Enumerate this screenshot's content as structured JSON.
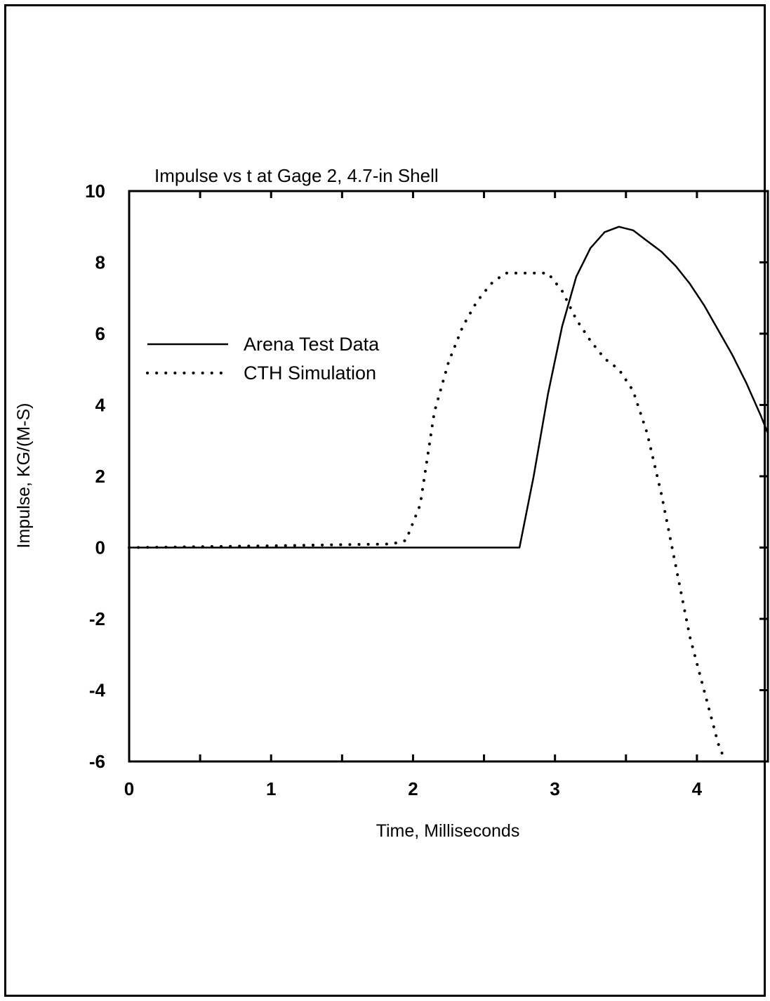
{
  "chart_data": {
    "type": "line",
    "title": "Impulse vs t at Gage 2, 4.7-in Shell",
    "xlabel": "Time, Milliseconds",
    "ylabel": "Impulse, KG/(M-S)",
    "xlim": [
      0,
      4.5
    ],
    "ylim": [
      -6,
      10
    ],
    "x_ticks": [
      0,
      1,
      2,
      3,
      4
    ],
    "x_tick_labels": [
      "0",
      "1",
      "2",
      "3",
      "4"
    ],
    "y_ticks": [
      -6,
      -4,
      -2,
      0,
      2,
      4,
      6,
      8,
      10
    ],
    "y_tick_labels": [
      "-6",
      "-4",
      "-2",
      "0",
      "2",
      "4",
      "6",
      "8",
      "10"
    ],
    "grid": false,
    "legend_position": "left",
    "series": [
      {
        "name": "Arena Test Data",
        "style": "solid",
        "x": [
          0,
          2.75,
          2.85,
          2.95,
          3.05,
          3.15,
          3.25,
          3.35,
          3.45,
          3.55,
          3.65,
          3.75,
          3.85,
          3.95,
          4.05,
          4.15,
          4.25,
          4.35,
          4.45,
          4.5
        ],
        "y": [
          0,
          0,
          2.0,
          4.3,
          6.2,
          7.6,
          8.4,
          8.85,
          9.0,
          8.9,
          8.6,
          8.3,
          7.9,
          7.4,
          6.8,
          6.1,
          5.4,
          4.6,
          3.7,
          3.2
        ]
      },
      {
        "name": "CTH Simulation",
        "style": "dotted",
        "x": [
          0,
          1.0,
          1.5,
          1.85,
          1.95,
          2.05,
          2.15,
          2.25,
          2.35,
          2.45,
          2.55,
          2.65,
          2.75,
          2.85,
          2.95,
          3.05,
          3.15,
          3.25,
          3.35,
          3.45,
          3.55,
          3.65,
          3.75,
          3.85,
          3.95,
          4.05,
          4.15,
          4.2
        ],
        "y": [
          0,
          0.05,
          0.08,
          0.1,
          0.2,
          1.2,
          3.8,
          5.2,
          6.2,
          6.9,
          7.4,
          7.7,
          7.7,
          7.7,
          7.7,
          7.2,
          6.4,
          5.8,
          5.3,
          5.0,
          4.4,
          3.2,
          1.5,
          -0.5,
          -2.5,
          -4.0,
          -5.5,
          -6.0
        ]
      }
    ]
  }
}
